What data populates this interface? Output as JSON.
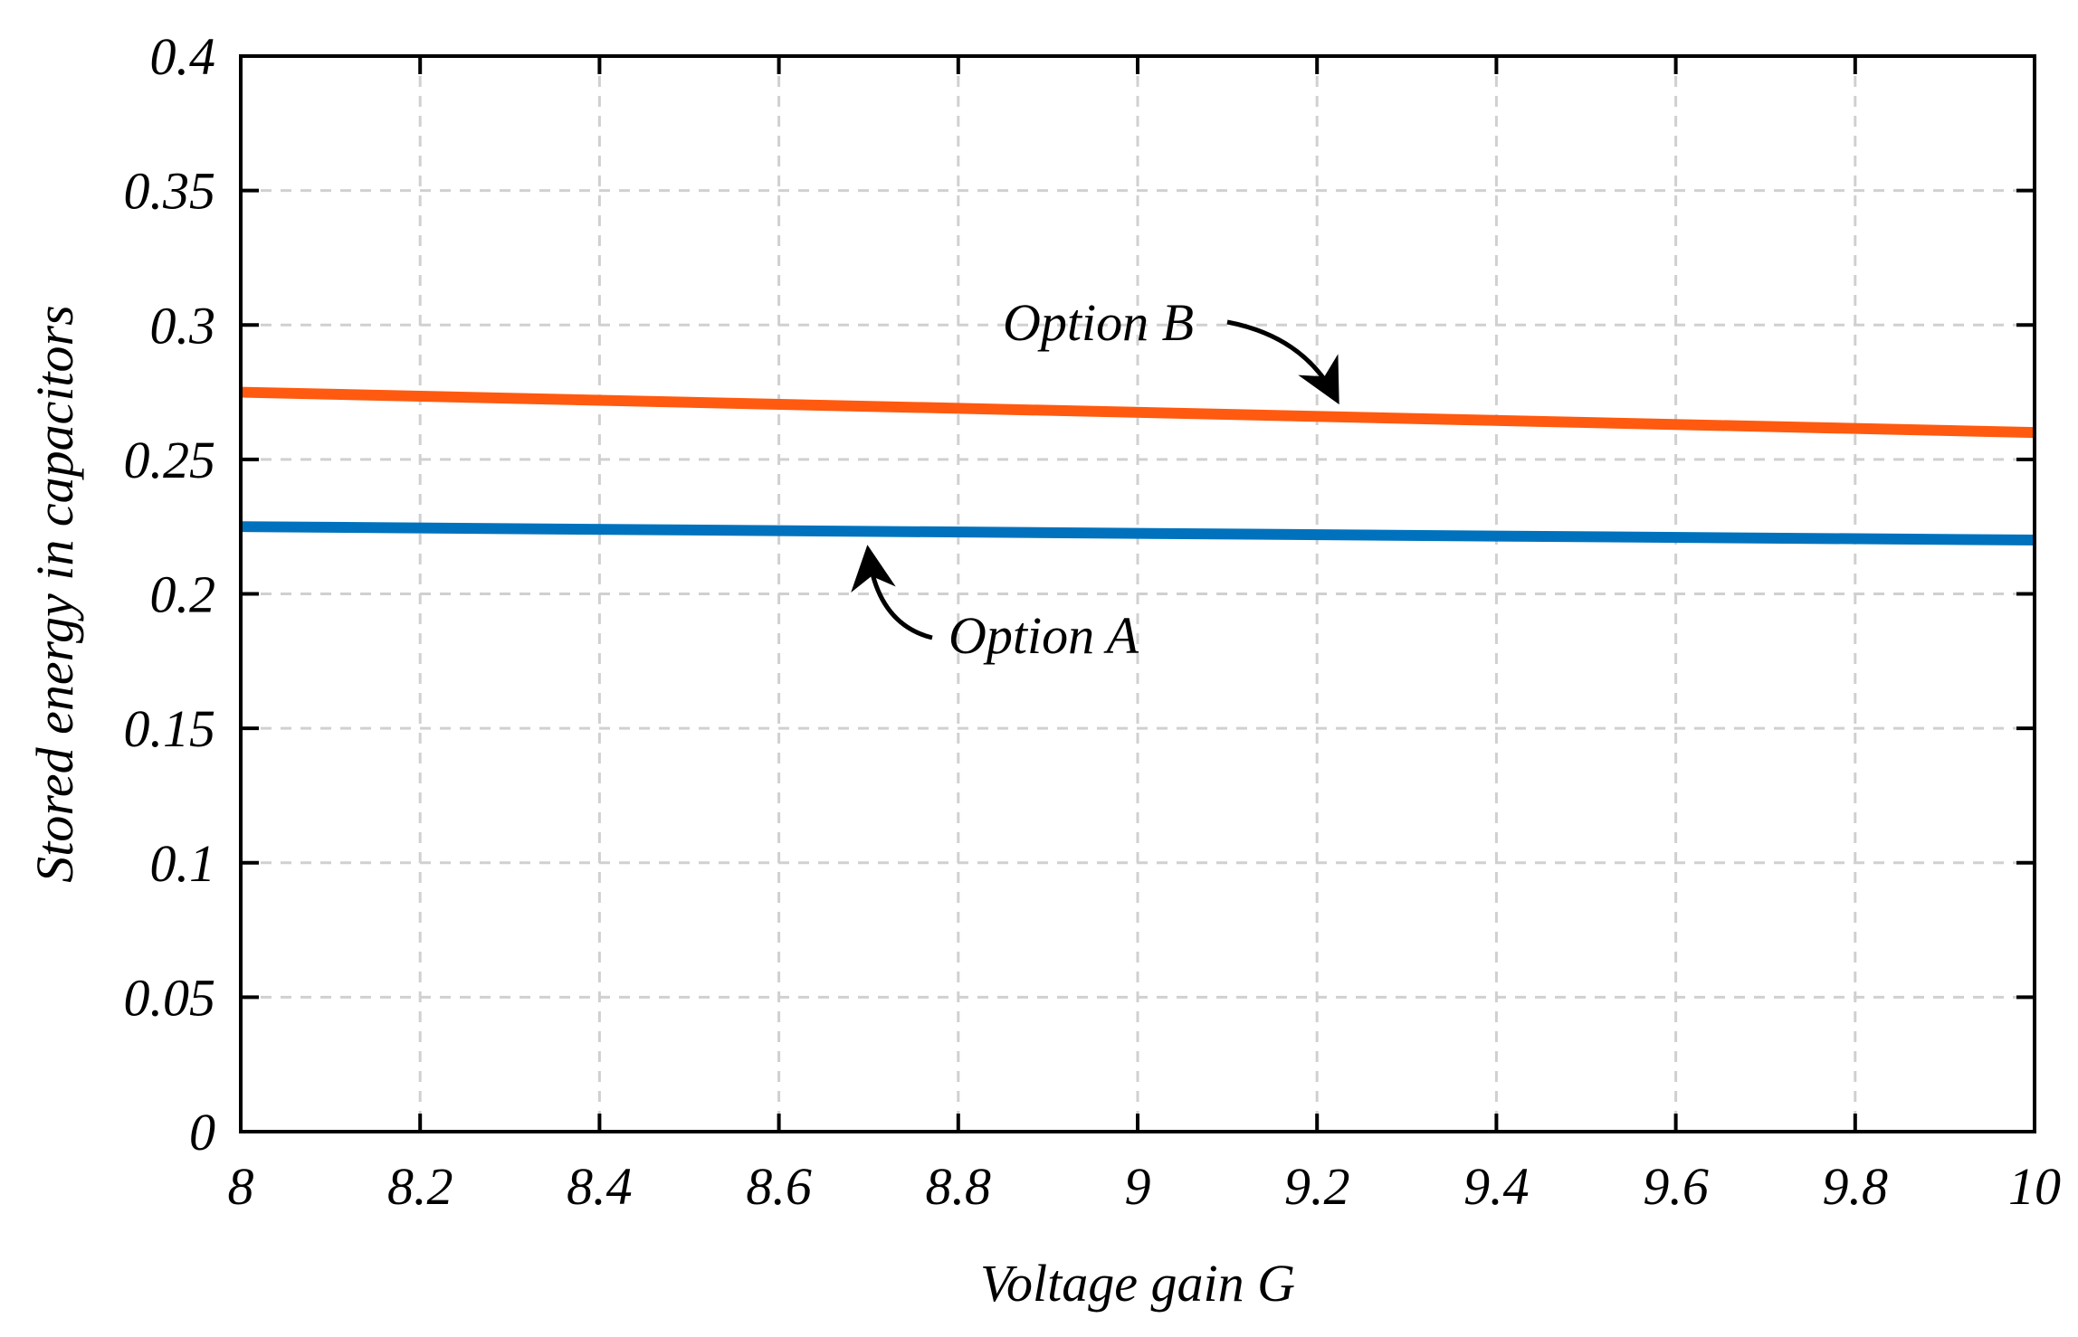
{
  "chart_data": {
    "type": "line",
    "title": "",
    "xlabel": "Voltage gain G",
    "ylabel": "Stored energy in capacitors",
    "xlim": [
      8,
      10
    ],
    "ylim": [
      0,
      0.4
    ],
    "grid": true,
    "x_ticks": [
      "8",
      "8.2",
      "8.4",
      "8.6",
      "8.8",
      "9",
      "9.2",
      "9.4",
      "9.6",
      "9.8",
      "10"
    ],
    "y_ticks": [
      "0",
      "0.05",
      "0.1",
      "0.15",
      "0.2",
      "0.25",
      "0.3",
      "0.35",
      "0.4"
    ],
    "series": [
      {
        "name": "Option A",
        "color": "#0072BD",
        "x": [
          8,
          10
        ],
        "y": [
          0.225,
          0.22
        ]
      },
      {
        "name": "Option B",
        "color": "#FF5A0F",
        "x": [
          8,
          10
        ],
        "y": [
          0.275,
          0.26
        ]
      }
    ],
    "annotations": [
      {
        "text": "Option A",
        "series": "Option A",
        "point_x": 8.7,
        "point_y": 0.223
      },
      {
        "text": "Option B",
        "series": "Option B",
        "point_x": 9.22,
        "point_y": 0.266
      }
    ]
  }
}
